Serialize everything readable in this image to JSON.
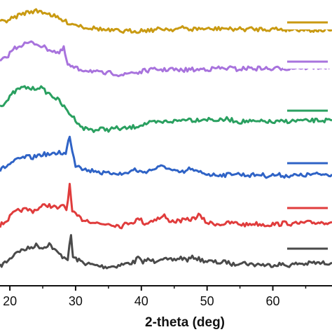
{
  "chart_data": {
    "type": "line",
    "title": "",
    "xlabel": "2-theta (deg)",
    "ylabel": "",
    "xlim": [
      18.5,
      69
    ],
    "xticks": [
      20,
      30,
      40,
      50,
      60
    ],
    "tick_labels": [
      "20",
      "30",
      "40",
      "50",
      "60"
    ],
    "grid": false,
    "legend": "right",
    "y_units": "arbitrary (stacked intensity)",
    "series": [
      {
        "color": "#4a4a4a",
        "legend_label": "",
        "points": [
          [
            18.5,
            380
          ],
          [
            20,
            370
          ],
          [
            21,
            359
          ],
          [
            22,
            357
          ],
          [
            23,
            354
          ],
          [
            24,
            350
          ],
          [
            25,
            354
          ],
          [
            26,
            348
          ],
          [
            27,
            359
          ],
          [
            28,
            366
          ],
          [
            28.8,
            369
          ],
          [
            29.3,
            337
          ],
          [
            29.6,
            367
          ],
          [
            30.5,
            372
          ],
          [
            31.5,
            376
          ],
          [
            33,
            379
          ],
          [
            34.5,
            381
          ],
          [
            36,
            380
          ],
          [
            37.5,
            377
          ],
          [
            39,
            374
          ],
          [
            39.5,
            367
          ],
          [
            40,
            374
          ],
          [
            41,
            371
          ],
          [
            42,
            373
          ],
          [
            43,
            368
          ],
          [
            44,
            372
          ],
          [
            45,
            371
          ],
          [
            46,
            368
          ],
          [
            47,
            371
          ],
          [
            48,
            367
          ],
          [
            49,
            371
          ],
          [
            50,
            373
          ],
          [
            51,
            374
          ],
          [
            52,
            375
          ],
          [
            53,
            374
          ],
          [
            54,
            378
          ],
          [
            55,
            374
          ],
          [
            56,
            376
          ],
          [
            57,
            378
          ],
          [
            58,
            377
          ],
          [
            59,
            379
          ],
          [
            60,
            378
          ],
          [
            61,
            377
          ],
          [
            62,
            379
          ],
          [
            63,
            378
          ],
          [
            64,
            376
          ],
          [
            65,
            377
          ],
          [
            66,
            375
          ],
          [
            67,
            376
          ],
          [
            69,
            375
          ]
        ]
      },
      {
        "color": "#e03c3c",
        "legend_label": "",
        "points": [
          [
            18.5,
            322
          ],
          [
            19.5,
            315
          ],
          [
            20.5,
            305
          ],
          [
            21.5,
            300
          ],
          [
            22.5,
            299
          ],
          [
            23.5,
            301
          ],
          [
            24.5,
            297
          ],
          [
            25.5,
            292
          ],
          [
            26.5,
            295
          ],
          [
            27.5,
            298
          ],
          [
            28.2,
            292
          ],
          [
            28.6,
            300
          ],
          [
            29.1,
            265
          ],
          [
            29.5,
            303
          ],
          [
            30,
            307
          ],
          [
            31,
            313
          ],
          [
            32,
            315
          ],
          [
            33,
            318
          ],
          [
            34,
            320
          ],
          [
            35,
            319
          ],
          [
            36,
            321
          ],
          [
            37,
            323
          ],
          [
            38,
            318
          ],
          [
            39,
            316
          ],
          [
            39.7,
            312
          ],
          [
            40.5,
            319
          ],
          [
            41,
            318
          ],
          [
            42,
            313
          ],
          [
            43,
            311
          ],
          [
            43.5,
            308
          ],
          [
            44,
            314
          ],
          [
            45,
            316
          ],
          [
            46,
            315
          ],
          [
            47,
            314
          ],
          [
            48,
            312
          ],
          [
            48.7,
            307
          ],
          [
            49.5,
            314
          ],
          [
            50,
            318
          ],
          [
            51,
            319
          ],
          [
            52,
            320
          ],
          [
            53,
            319
          ],
          [
            54,
            318
          ],
          [
            55,
            320
          ],
          [
            56,
            321
          ],
          [
            57,
            319
          ],
          [
            58,
            320
          ],
          [
            59,
            321
          ],
          [
            60,
            320
          ],
          [
            61,
            320
          ],
          [
            62,
            318
          ],
          [
            63,
            320
          ],
          [
            64,
            319
          ],
          [
            65,
            318
          ],
          [
            66,
            318
          ],
          [
            69,
            317
          ]
        ]
      },
      {
        "color": "#2f63c6",
        "legend_label": "",
        "points": [
          [
            18.5,
            243
          ],
          [
            19.5,
            237
          ],
          [
            20.5,
            231
          ],
          [
            21.5,
            227
          ],
          [
            22.5,
            224
          ],
          [
            23.5,
            225
          ],
          [
            24.5,
            221
          ],
          [
            25.5,
            220
          ],
          [
            26.5,
            221
          ],
          [
            27.5,
            217
          ],
          [
            28.5,
            220
          ],
          [
            29.1,
            193
          ],
          [
            29.5,
            215
          ],
          [
            30,
            236
          ],
          [
            30.5,
            235
          ],
          [
            31,
            240
          ],
          [
            32,
            244
          ],
          [
            33,
            243
          ],
          [
            34,
            247
          ],
          [
            35,
            248
          ],
          [
            36,
            246
          ],
          [
            37,
            249
          ],
          [
            38,
            246
          ],
          [
            39,
            242
          ],
          [
            40,
            246
          ],
          [
            41,
            244
          ],
          [
            42,
            241
          ],
          [
            43.5,
            237
          ],
          [
            44.5,
            243
          ],
          [
            45.5,
            246
          ],
          [
            46.5,
            246
          ],
          [
            47.5,
            240
          ],
          [
            48,
            245
          ],
          [
            49,
            246
          ],
          [
            50,
            248
          ],
          [
            51,
            250
          ],
          [
            52,
            249
          ],
          [
            53,
            250
          ],
          [
            54,
            247
          ],
          [
            55,
            249
          ],
          [
            56,
            250
          ],
          [
            57,
            250
          ],
          [
            58,
            249
          ],
          [
            59,
            251
          ],
          [
            60,
            250
          ],
          [
            61,
            250
          ],
          [
            62,
            251
          ],
          [
            63,
            250
          ],
          [
            64,
            251
          ],
          [
            65,
            250
          ],
          [
            66,
            249
          ],
          [
            69,
            249
          ]
        ]
      },
      {
        "color": "#2aa060",
        "legend_label": "",
        "points": [
          [
            18.5,
            151
          ],
          [
            19.5,
            145
          ],
          [
            20.5,
            133
          ],
          [
            21.5,
            126
          ],
          [
            22.5,
            125
          ],
          [
            23.5,
            127
          ],
          [
            24.5,
            124
          ],
          [
            25.5,
            131
          ],
          [
            26.5,
            137
          ],
          [
            27.5,
            144
          ],
          [
            28.5,
            156
          ],
          [
            29.5,
            166
          ],
          [
            30.5,
            176
          ],
          [
            31,
            183
          ],
          [
            32,
            184
          ],
          [
            33,
            186
          ],
          [
            34,
            184
          ],
          [
            35,
            185
          ],
          [
            36,
            183
          ],
          [
            37,
            184
          ],
          [
            38,
            183
          ],
          [
            39,
            181
          ],
          [
            40,
            178
          ],
          [
            41,
            176
          ],
          [
            42,
            175
          ],
          [
            43,
            175
          ],
          [
            44,
            173
          ],
          [
            45,
            173
          ],
          [
            46,
            172
          ],
          [
            47,
            169
          ],
          [
            48,
            172
          ],
          [
            49,
            170
          ],
          [
            50,
            170
          ],
          [
            51,
            171
          ],
          [
            52,
            172
          ],
          [
            53,
            170
          ],
          [
            54,
            172
          ],
          [
            55,
            174
          ],
          [
            56,
            173
          ],
          [
            57,
            174
          ],
          [
            58,
            174
          ],
          [
            59,
            173
          ],
          [
            60,
            175
          ],
          [
            61,
            174
          ],
          [
            62,
            173
          ],
          [
            63,
            173
          ],
          [
            64,
            172
          ],
          [
            65,
            173
          ],
          [
            66,
            172
          ],
          [
            69,
            172
          ]
        ]
      },
      {
        "color": "#a873dd",
        "legend_label": "",
        "points": [
          [
            18.5,
            88
          ],
          [
            19.5,
            82
          ],
          [
            20.5,
            70
          ],
          [
            21.5,
            65
          ],
          [
            22.5,
            62
          ],
          [
            23.5,
            61
          ],
          [
            24.5,
            64
          ],
          [
            25.5,
            69
          ],
          [
            26.5,
            72
          ],
          [
            27.5,
            76
          ],
          [
            28.2,
            69
          ],
          [
            28.8,
            93
          ],
          [
            29.5,
            96
          ],
          [
            30.5,
            99
          ],
          [
            31.5,
            100
          ],
          [
            32.5,
            101
          ],
          [
            33.5,
            104
          ],
          [
            34.5,
            105
          ],
          [
            35.5,
            104
          ],
          [
            36.5,
            106
          ],
          [
            37.5,
            107
          ],
          [
            38.5,
            103
          ],
          [
            39.5,
            104
          ],
          [
            40.5,
            101
          ],
          [
            41.5,
            100
          ],
          [
            42.5,
            99
          ],
          [
            43.5,
            100
          ],
          [
            44.5,
            98
          ],
          [
            45.5,
            101
          ],
          [
            46.5,
            100
          ],
          [
            47.5,
            99
          ],
          [
            48.5,
            100
          ],
          [
            49.5,
            98
          ],
          [
            50.5,
            99
          ],
          [
            51.5,
            97
          ],
          [
            52.5,
            98
          ],
          [
            53.5,
            97
          ],
          [
            54.5,
            99
          ],
          [
            55.5,
            98
          ],
          [
            56.5,
            97
          ],
          [
            57.5,
            98
          ],
          [
            58.5,
            97
          ],
          [
            59.5,
            99
          ],
          [
            60.5,
            98
          ],
          [
            61.5,
            97
          ],
          [
            62.5,
            98
          ],
          [
            63.5,
            96
          ],
          [
            64.5,
            97
          ],
          [
            65.5,
            96
          ],
          [
            69,
            96
          ]
        ]
      },
      {
        "color": "#c99a12",
        "legend_label": "",
        "points": [
          [
            18.5,
            32
          ],
          [
            19.5,
            29
          ],
          [
            20.5,
            26
          ],
          [
            21.5,
            21
          ],
          [
            22.5,
            18
          ],
          [
            23.5,
            16
          ],
          [
            24.5,
            16
          ],
          [
            25.5,
            18
          ],
          [
            26.5,
            22
          ],
          [
            27.5,
            27
          ],
          [
            28.5,
            31
          ],
          [
            29.5,
            34
          ],
          [
            30.5,
            36
          ],
          [
            31.5,
            39
          ],
          [
            32.5,
            40
          ],
          [
            33.5,
            41
          ],
          [
            34.5,
            43
          ],
          [
            35.5,
            44
          ],
          [
            36.5,
            44
          ],
          [
            37.5,
            45
          ],
          [
            38.5,
            44
          ],
          [
            39.5,
            44
          ],
          [
            40.5,
            43
          ],
          [
            41.5,
            43
          ],
          [
            42.5,
            42
          ],
          [
            43.5,
            41
          ],
          [
            44.5,
            42
          ],
          [
            45.5,
            41
          ],
          [
            46.5,
            40
          ],
          [
            47.5,
            42
          ],
          [
            48.5,
            41
          ],
          [
            49.5,
            41
          ],
          [
            50.5,
            42
          ],
          [
            51.5,
            41
          ],
          [
            52.5,
            40
          ],
          [
            53.5,
            42
          ],
          [
            54.5,
            41
          ],
          [
            55.5,
            42
          ],
          [
            56.5,
            41
          ],
          [
            57.5,
            42
          ],
          [
            58.5,
            41
          ],
          [
            59.5,
            42
          ],
          [
            60.5,
            41
          ],
          [
            61.5,
            42
          ],
          [
            62.5,
            42
          ],
          [
            63.5,
            42
          ],
          [
            64.5,
            42
          ],
          [
            65.5,
            43
          ],
          [
            69,
            43
          ]
        ]
      }
    ]
  }
}
